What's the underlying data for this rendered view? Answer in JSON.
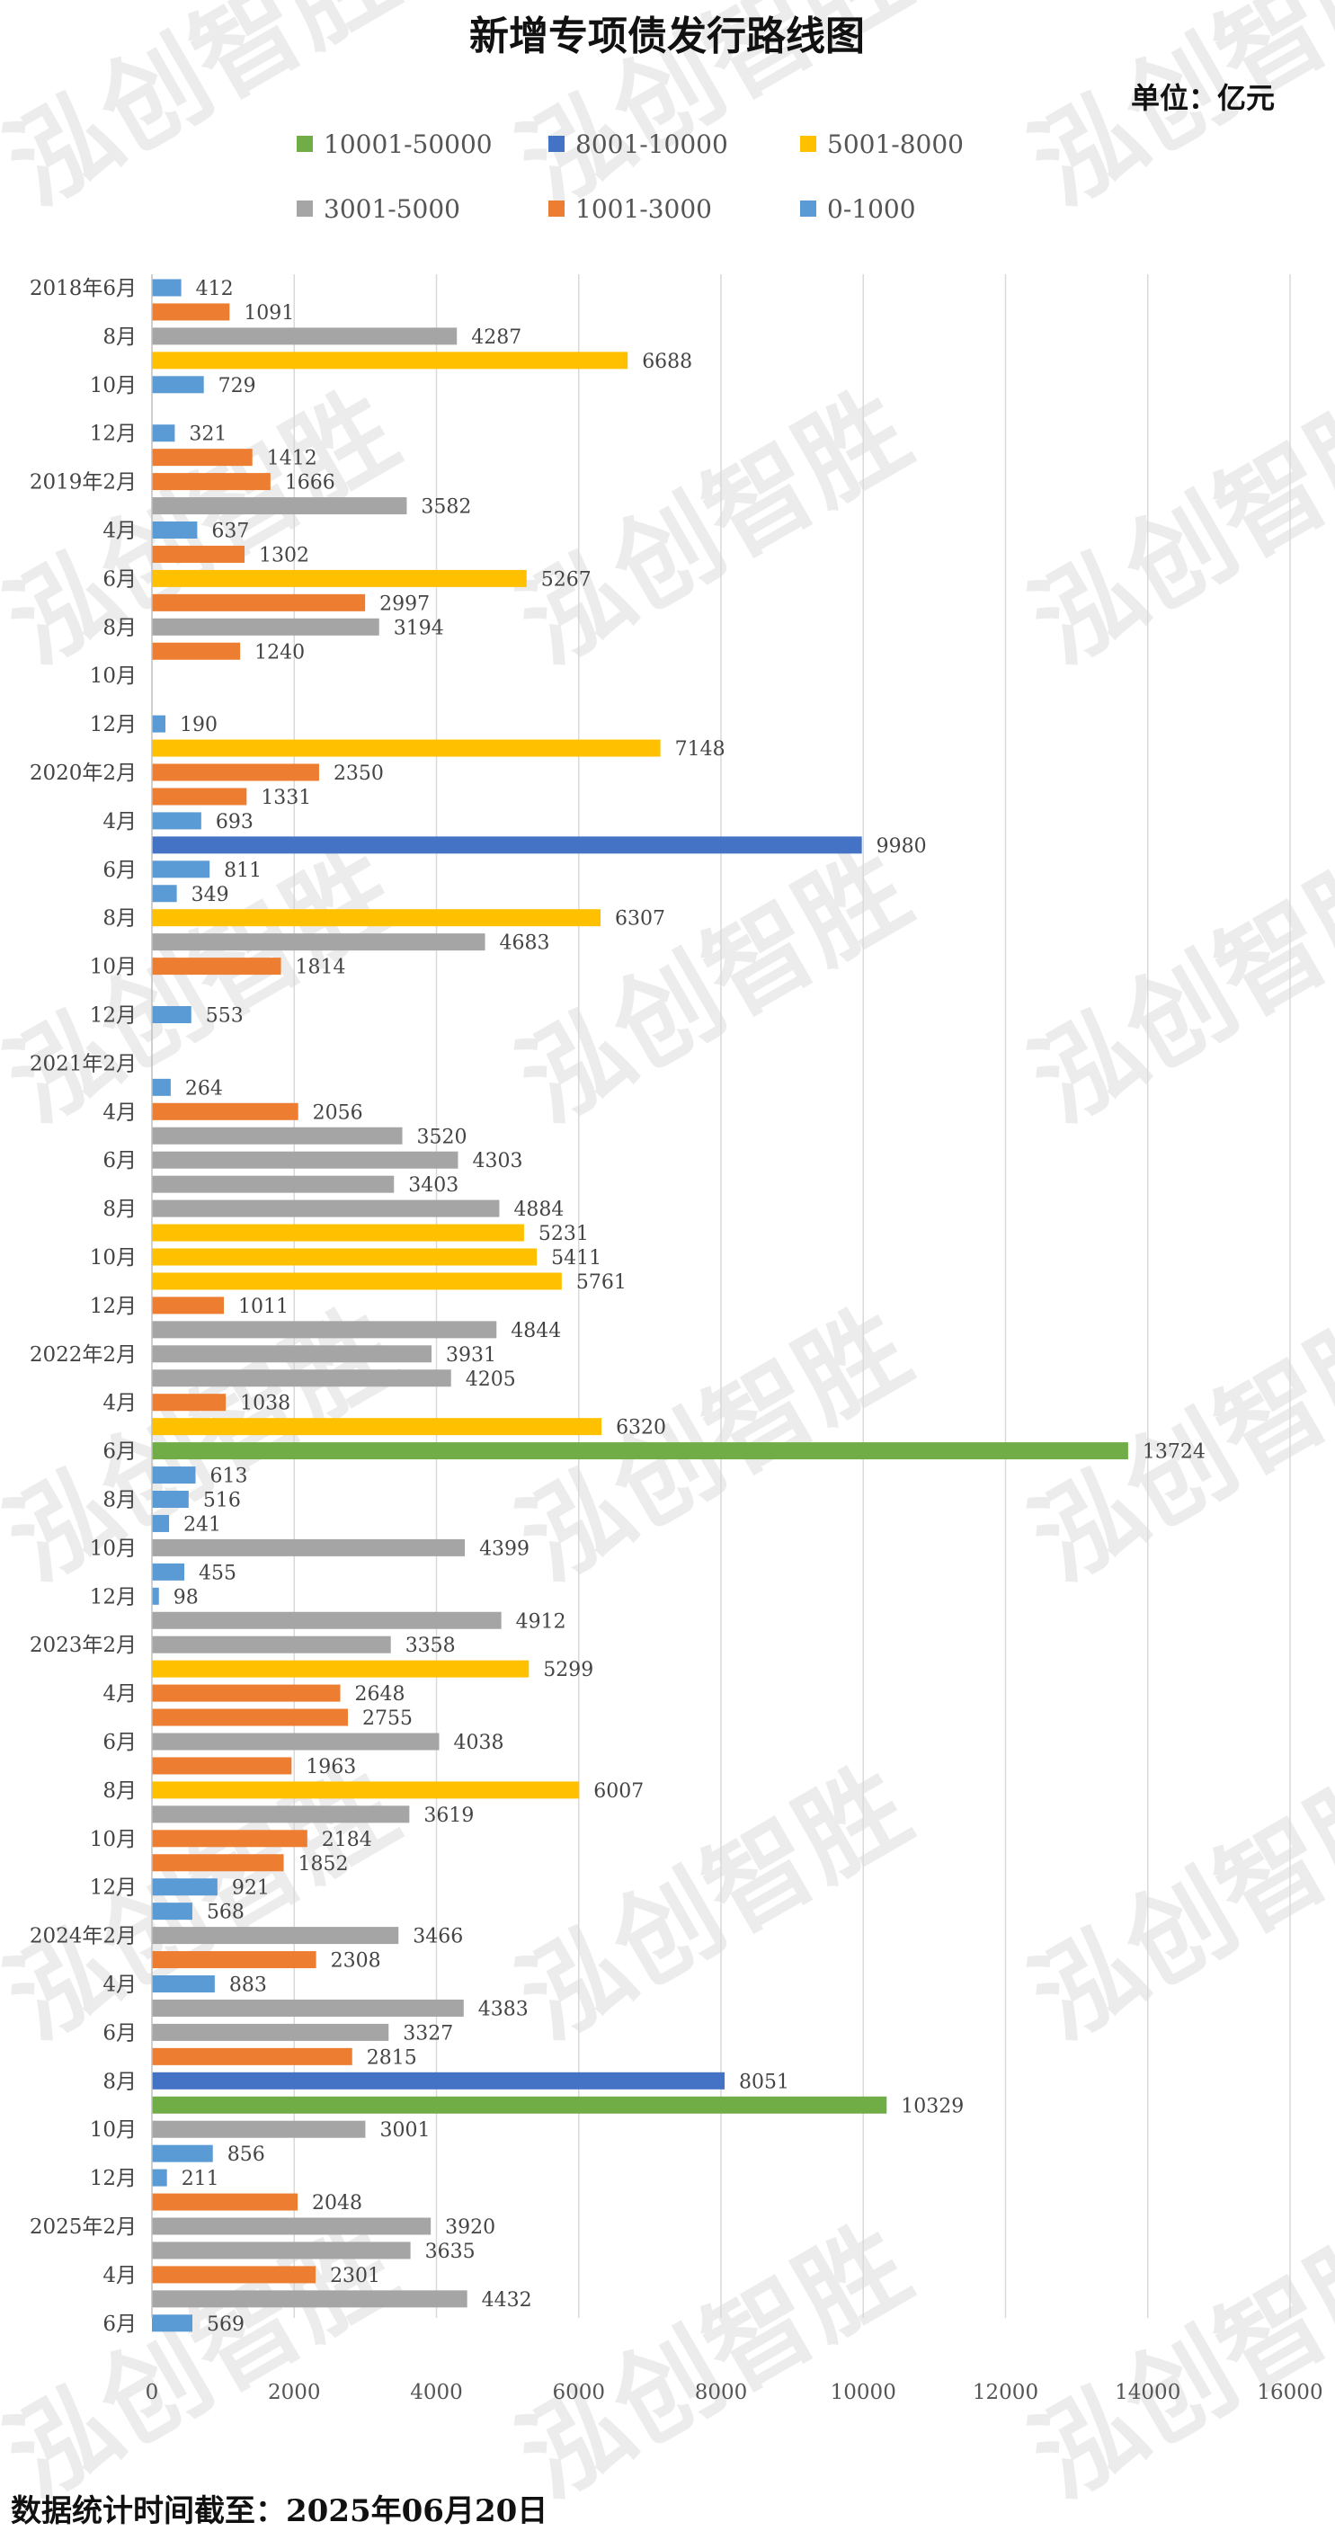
{
  "chart_data": {
    "type": "bar",
    "orientation": "horizontal",
    "title": "新增专项债发行路线图",
    "unit": "单位：亿元",
    "footnote": "数据统计时间截至：2025年06月20日",
    "watermark": "泓创智胜",
    "legend_position": "top",
    "grid": "vertical",
    "xlim": [
      0,
      16000
    ],
    "xticks": [
      0,
      2000,
      4000,
      6000,
      8000,
      10000,
      12000,
      14000,
      16000
    ],
    "xtick_labels": [
      "0",
      "2000",
      "4000",
      "6000",
      "8000",
      "10000",
      "12000",
      "14000",
      "16000"
    ],
    "classes": [
      {
        "key": "c5",
        "label": "10001-50000",
        "color": "#70ad47",
        "min": 10001
      },
      {
        "key": "c4",
        "label": "8001-10000",
        "color": "#4472c4",
        "min": 8001
      },
      {
        "key": "c3",
        "label": "5001-8000",
        "color": "#ffc000",
        "min": 5001
      },
      {
        "key": "c2",
        "label": "3001-5000",
        "color": "#a5a5a5",
        "min": 3001
      },
      {
        "key": "c1",
        "label": "1001-3000",
        "color": "#ed7d31",
        "min": 1001
      },
      {
        "key": "c0",
        "label": "0-1000",
        "color": "#5b9bd5",
        "min": 0
      }
    ],
    "categories": [
      "2018年6月",
      "",
      "8月",
      "",
      "10月",
      "",
      "12月",
      "",
      "2019年2月",
      "",
      "4月",
      "",
      "6月",
      "",
      "8月",
      "",
      "10月",
      "",
      "12月",
      "",
      "2020年2月",
      "",
      "4月",
      "",
      "6月",
      "",
      "8月",
      "",
      "10月",
      "",
      "12月",
      "",
      "2021年2月",
      "",
      "4月",
      "",
      "6月",
      "",
      "8月",
      "",
      "10月",
      "",
      "12月",
      "",
      "2022年2月",
      "",
      "4月",
      "",
      "6月",
      "",
      "8月",
      "",
      "10月",
      "",
      "12月",
      "",
      "2023年2月",
      "",
      "4月",
      "",
      "6月",
      "",
      "8月",
      "",
      "10月",
      "",
      "12月",
      "",
      "2024年2月",
      "",
      "4月",
      "",
      "6月",
      "",
      "8月",
      "",
      "10月",
      "",
      "12月",
      "",
      "2025年2月",
      "",
      "4月",
      "",
      "6月"
    ],
    "values": [
      412,
      1091,
      4287,
      6688,
      729,
      null,
      321,
      1412,
      1666,
      3582,
      637,
      1302,
      5267,
      2997,
      3194,
      1240,
      null,
      null,
      190,
      7148,
      2350,
      1331,
      693,
      9980,
      811,
      349,
      6307,
      4683,
      1814,
      null,
      553,
      null,
      null,
      264,
      2056,
      3520,
      4303,
      3403,
      4884,
      5231,
      5411,
      5761,
      1011,
      4844,
      3931,
      4205,
      1038,
      6320,
      13724,
      613,
      516,
      241,
      4399,
      455,
      98,
      4912,
      3358,
      5299,
      2648,
      2755,
      4038,
      1963,
      6007,
      3619,
      2184,
      1852,
      921,
      568,
      3466,
      2308,
      883,
      4383,
      3327,
      2815,
      8051,
      10329,
      3001,
      856,
      211,
      2048,
      3920,
      3635,
      2301,
      4432,
      569
    ]
  }
}
